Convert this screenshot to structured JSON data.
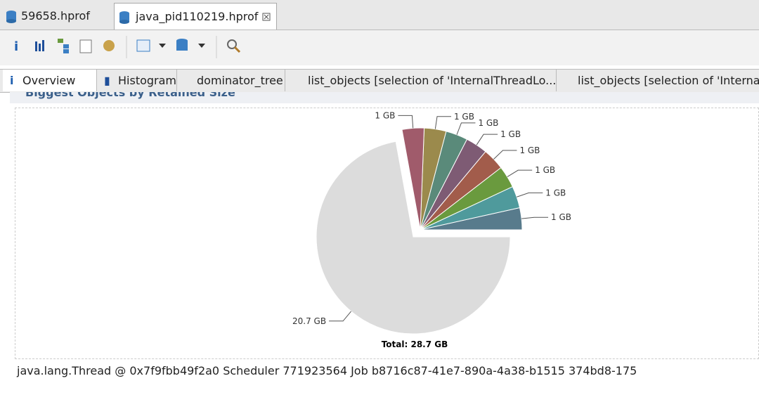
{
  "editor_tabs": [
    "59658.hprof",
    "java_pid110219.hprof"
  ],
  "view_tabs": [
    "Overview",
    "Histogram",
    "dominator_tree",
    "list_objects [selection of 'InternalThreadLo...",
    "list_objects [selection of 'Interna"
  ],
  "section_title": "Biggest Objects by Retained Size",
  "chart_data": {
    "type": "pie",
    "values": [
      1,
      1,
      1,
      1,
      1,
      1,
      1,
      1,
      20.7
    ],
    "value_labels": [
      "1 GB",
      "1 GB",
      "1 GB",
      "1 GB",
      "1 GB",
      "1 GB",
      "1 GB",
      "1 GB",
      "20.7 GB"
    ],
    "colors": [
      "#587b8c",
      "#4f9a9c",
      "#6a9a3e",
      "#a25c4b",
      "#7e5b74",
      "#5a8a7a",
      "#9b8a4c",
      "#a05b6b",
      "#dcdcdc"
    ],
    "total_label": "Total: 28.7 GB"
  },
  "footer": "java.lang.Thread @ 0x7f9fbb49f2a0 Scheduler 771923564 Job b8716c87-41e7-890a-4a38-b1515 374bd8-175"
}
